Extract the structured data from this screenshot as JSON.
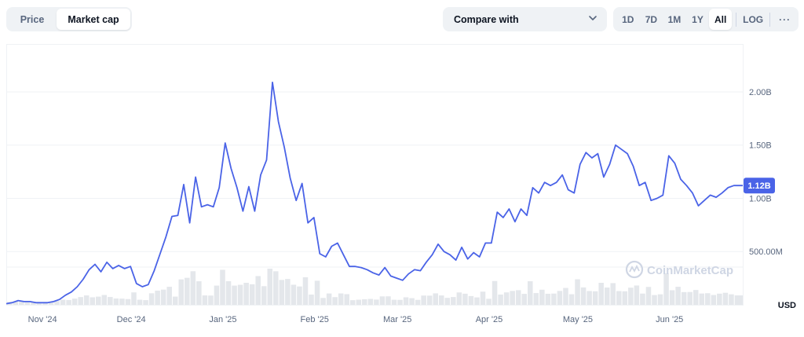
{
  "toggle": {
    "price_label": "Price",
    "market_cap_label": "Market cap"
  },
  "compare": {
    "label": "Compare with",
    "icon": "chevron-down-icon"
  },
  "ranges": {
    "d1": "1D",
    "d7": "7D",
    "m1": "1M",
    "y1": "1Y",
    "all": "All",
    "log": "LOG",
    "more": "···"
  },
  "watermark": "CoinMarketCap",
  "currency": "USD",
  "colors": {
    "line": "#4a63e7",
    "badge": "#4a63e7",
    "volume": "#e4e7eb",
    "grid": "#eff2f5"
  },
  "chart_data": {
    "type": "line",
    "title": "",
    "ylabel": "",
    "xlabel": "",
    "y_ticks": [
      {
        "value": 500000000,
        "label": "500.00M"
      },
      {
        "value": 1000000000,
        "label": "1.00B"
      },
      {
        "value": 1500000000,
        "label": "1.50B"
      },
      {
        "value": 2000000000,
        "label": "2.00B"
      }
    ],
    "x_ticks": [
      {
        "date": "2024-11-01",
        "label": "Nov '24"
      },
      {
        "date": "2024-12-01",
        "label": "Dec '24"
      },
      {
        "date": "2025-01-01",
        "label": "Jan '25"
      },
      {
        "date": "2025-02-01",
        "label": "Feb '25"
      },
      {
        "date": "2025-03-01",
        "label": "Mar '25"
      },
      {
        "date": "2025-04-01",
        "label": "Apr '25"
      },
      {
        "date": "2025-05-01",
        "label": "May '25"
      },
      {
        "date": "2025-06-01",
        "label": "Jun '25"
      }
    ],
    "ylim": [
      0,
      2450000000
    ],
    "xlim": [
      "2024-10-24",
      "2025-06-30"
    ],
    "current_value_label": "1.12B",
    "grid": true,
    "series": [
      {
        "values": [
          [
            "2024-10-24",
            0.01
          ],
          [
            "2024-10-26",
            0.02
          ],
          [
            "2024-10-28",
            0.04
          ],
          [
            "2024-10-30",
            0.03
          ],
          [
            "2024-11-01",
            0.03
          ],
          [
            "2024-11-03",
            0.02
          ],
          [
            "2024-11-05",
            0.02
          ],
          [
            "2024-11-07",
            0.02
          ],
          [
            "2024-11-09",
            0.03
          ],
          [
            "2024-11-11",
            0.05
          ],
          [
            "2024-11-13",
            0.09
          ],
          [
            "2024-11-15",
            0.12
          ],
          [
            "2024-11-17",
            0.17
          ],
          [
            "2024-11-19",
            0.24
          ],
          [
            "2024-11-21",
            0.33
          ],
          [
            "2024-11-23",
            0.38
          ],
          [
            "2024-11-25",
            0.31
          ],
          [
            "2024-11-27",
            0.4
          ],
          [
            "2024-11-29",
            0.34
          ],
          [
            "2024-12-01",
            0.37
          ],
          [
            "2024-12-03",
            0.34
          ],
          [
            "2024-12-05",
            0.36
          ],
          [
            "2024-12-07",
            0.2
          ],
          [
            "2024-12-09",
            0.17
          ],
          [
            "2024-12-11",
            0.19
          ],
          [
            "2024-12-13",
            0.32
          ],
          [
            "2024-12-15",
            0.48
          ],
          [
            "2024-12-17",
            0.64
          ],
          [
            "2024-12-19",
            0.83
          ],
          [
            "2024-12-21",
            0.84
          ],
          [
            "2024-12-23",
            1.13
          ],
          [
            "2024-12-25",
            0.77
          ],
          [
            "2024-12-27",
            1.2
          ],
          [
            "2024-12-29",
            0.92
          ],
          [
            "2024-12-31",
            0.94
          ],
          [
            "2025-01-02",
            0.92
          ],
          [
            "2025-01-04",
            1.1
          ],
          [
            "2025-01-06",
            1.52
          ],
          [
            "2025-01-08",
            1.28
          ],
          [
            "2025-01-10",
            1.1
          ],
          [
            "2025-01-12",
            0.88
          ],
          [
            "2025-01-14",
            1.11
          ],
          [
            "2025-01-16",
            0.88
          ],
          [
            "2025-01-18",
            1.22
          ],
          [
            "2025-01-20",
            1.36
          ],
          [
            "2025-01-22",
            2.09
          ],
          [
            "2025-01-24",
            1.72
          ],
          [
            "2025-01-26",
            1.48
          ],
          [
            "2025-01-28",
            1.19
          ],
          [
            "2025-01-30",
            0.98
          ],
          [
            "2025-02-01",
            1.14
          ],
          [
            "2025-02-03",
            0.77
          ],
          [
            "2025-02-05",
            0.82
          ],
          [
            "2025-02-07",
            0.48
          ],
          [
            "2025-02-09",
            0.45
          ],
          [
            "2025-02-11",
            0.55
          ],
          [
            "2025-02-13",
            0.58
          ],
          [
            "2025-02-15",
            0.47
          ],
          [
            "2025-02-17",
            0.36
          ],
          [
            "2025-02-19",
            0.36
          ],
          [
            "2025-02-21",
            0.35
          ],
          [
            "2025-02-23",
            0.33
          ],
          [
            "2025-02-25",
            0.3
          ],
          [
            "2025-02-27",
            0.28
          ],
          [
            "2025-03-01",
            0.35
          ],
          [
            "2025-03-03",
            0.27
          ],
          [
            "2025-03-05",
            0.25
          ],
          [
            "2025-03-07",
            0.23
          ],
          [
            "2025-03-09",
            0.29
          ],
          [
            "2025-03-11",
            0.33
          ],
          [
            "2025-03-13",
            0.32
          ],
          [
            "2025-03-15",
            0.4
          ],
          [
            "2025-03-17",
            0.47
          ],
          [
            "2025-03-19",
            0.57
          ],
          [
            "2025-03-21",
            0.5
          ],
          [
            "2025-03-23",
            0.47
          ],
          [
            "2025-03-25",
            0.42
          ],
          [
            "2025-03-27",
            0.54
          ],
          [
            "2025-03-29",
            0.43
          ],
          [
            "2025-03-31",
            0.49
          ],
          [
            "2025-04-02",
            0.45
          ],
          [
            "2025-04-04",
            0.58
          ],
          [
            "2025-04-06",
            0.58
          ],
          [
            "2025-04-08",
            0.87
          ],
          [
            "2025-04-10",
            0.82
          ],
          [
            "2025-04-12",
            0.9
          ],
          [
            "2025-04-14",
            0.78
          ],
          [
            "2025-04-16",
            0.9
          ],
          [
            "2025-04-18",
            0.84
          ],
          [
            "2025-04-20",
            1.1
          ],
          [
            "2025-04-22",
            1.05
          ],
          [
            "2025-04-24",
            1.15
          ],
          [
            "2025-04-26",
            1.12
          ],
          [
            "2025-04-28",
            1.15
          ],
          [
            "2025-04-30",
            1.22
          ],
          [
            "2025-05-02",
            1.08
          ],
          [
            "2025-05-04",
            1.05
          ],
          [
            "2025-05-06",
            1.32
          ],
          [
            "2025-05-08",
            1.43
          ],
          [
            "2025-05-10",
            1.38
          ],
          [
            "2025-05-12",
            1.42
          ],
          [
            "2025-05-14",
            1.2
          ],
          [
            "2025-05-16",
            1.32
          ],
          [
            "2025-05-18",
            1.5
          ],
          [
            "2025-05-20",
            1.46
          ],
          [
            "2025-05-22",
            1.42
          ],
          [
            "2025-05-24",
            1.3
          ],
          [
            "2025-05-26",
            1.12
          ],
          [
            "2025-05-28",
            1.15
          ],
          [
            "2025-05-30",
            0.98
          ],
          [
            "2025-06-01",
            1.0
          ],
          [
            "2025-06-03",
            1.03
          ],
          [
            "2025-06-05",
            1.4
          ],
          [
            "2025-06-07",
            1.33
          ],
          [
            "2025-06-09",
            1.18
          ],
          [
            "2025-06-11",
            1.12
          ],
          [
            "2025-06-13",
            1.05
          ],
          [
            "2025-06-15",
            0.93
          ],
          [
            "2025-06-17",
            0.98
          ],
          [
            "2025-06-19",
            1.03
          ],
          [
            "2025-06-21",
            1.01
          ],
          [
            "2025-06-23",
            1.05
          ],
          [
            "2025-06-25",
            1.1
          ],
          [
            "2025-06-27",
            1.12
          ],
          [
            "2025-06-30",
            1.12
          ]
        ]
      }
    ]
  }
}
